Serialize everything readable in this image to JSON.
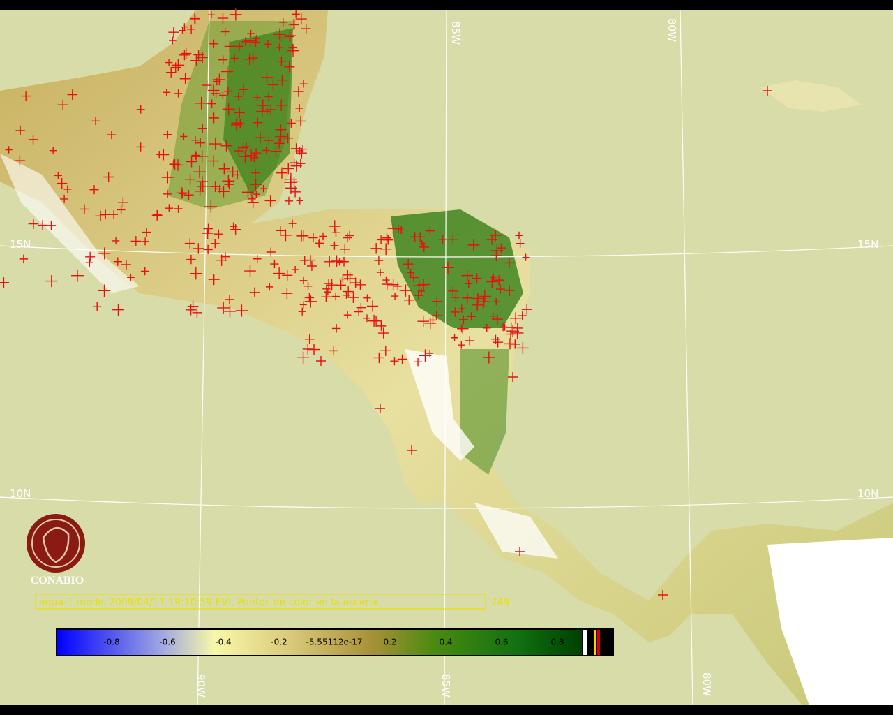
{
  "grid_labels": {
    "top": [
      "85W",
      "80W"
    ],
    "bottom": [
      "90W",
      "85W",
      "80W"
    ],
    "left": [
      "15N",
      "10N"
    ],
    "right": [
      "15N",
      "10N"
    ]
  },
  "logo": {
    "text": "CONABIO"
  },
  "caption": {
    "text": "aqua-1 modis 2009/04/11 19:10:59 EVI, Puntos de color en la escena",
    "count": "749"
  },
  "colorbar": {
    "labels": [
      "-0.8",
      "-0.6",
      "-0.4",
      "-0.2",
      "-5.55112e-17",
      "0.2",
      "0.4",
      "0.6",
      "0.8"
    ]
  }
}
